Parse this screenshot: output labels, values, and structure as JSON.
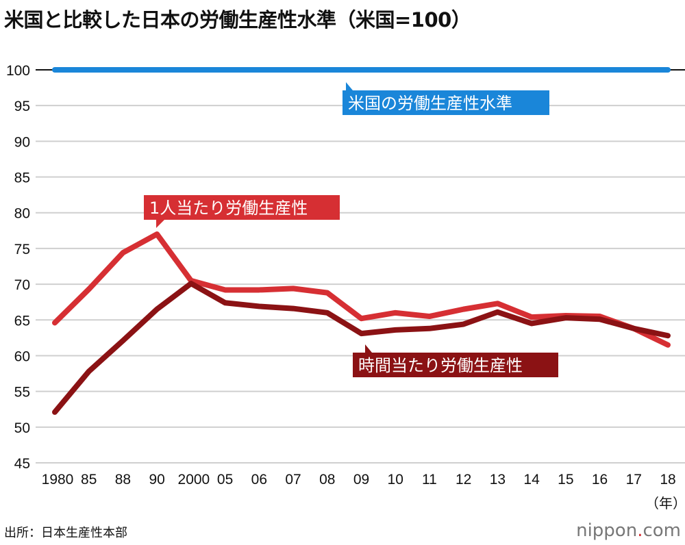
{
  "title": "米国と比較した日本の労働生産性水準（米国=100）",
  "source": "出所：日本生産性本部",
  "logo": {
    "prefix": "nippon",
    "dot": ".",
    "suffix": "com"
  },
  "chart_data": {
    "type": "line",
    "title": "米国と比較した日本の労働生産性水準（米国=100）",
    "xlabel": "（年）",
    "ylabel": "",
    "ylim": [
      45,
      100
    ],
    "yticks": [
      100,
      95,
      90,
      85,
      80,
      75,
      70,
      65,
      60,
      55,
      50,
      45
    ],
    "categories": [
      "1980",
      "85",
      "88",
      "90",
      "2000",
      "05",
      "06",
      "07",
      "08",
      "09",
      "10",
      "11",
      "12",
      "13",
      "14",
      "15",
      "16",
      "17",
      "18"
    ],
    "grid": true,
    "series": [
      {
        "name": "米国の労働生産性水準",
        "color": "#1a86d9",
        "values": [
          100,
          100,
          100,
          100,
          100,
          100,
          100,
          100,
          100,
          100,
          100,
          100,
          100,
          100,
          100,
          100,
          100,
          100,
          100
        ]
      },
      {
        "name": "1人当たり労働生産性",
        "color": "#d62f33",
        "values": [
          64.6,
          69.3,
          74.4,
          77.0,
          70.5,
          69.2,
          69.2,
          69.4,
          68.8,
          65.2,
          66.0,
          65.5,
          66.5,
          67.3,
          65.4,
          65.6,
          65.5,
          63.8,
          61.5
        ]
      },
      {
        "name": "時間当たり労働生産性",
        "color": "#8b1214",
        "values": [
          52.1,
          57.8,
          62.1,
          66.5,
          70.1,
          67.4,
          66.9,
          66.6,
          66.0,
          63.1,
          63.6,
          63.8,
          64.4,
          66.1,
          64.5,
          65.3,
          65.1,
          63.8,
          62.8
        ]
      }
    ]
  }
}
